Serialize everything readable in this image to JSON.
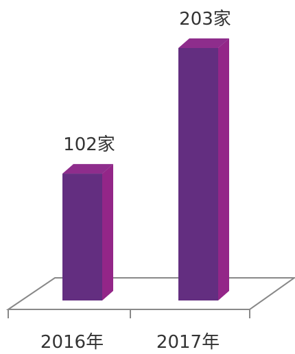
{
  "chart_data": {
    "type": "bar",
    "style": "3d",
    "categories": [
      "2016年",
      "2017年"
    ],
    "values": [
      102,
      203
    ],
    "data_labels": [
      "102家",
      "203家"
    ],
    "title": "",
    "xlabel": "",
    "ylabel": "",
    "grid": false,
    "legend": "none",
    "colors": {
      "bar_front": "#632e80",
      "bar_side": "#932688",
      "bar_top": "#8e2d8c",
      "floor_line": "#888888"
    }
  }
}
